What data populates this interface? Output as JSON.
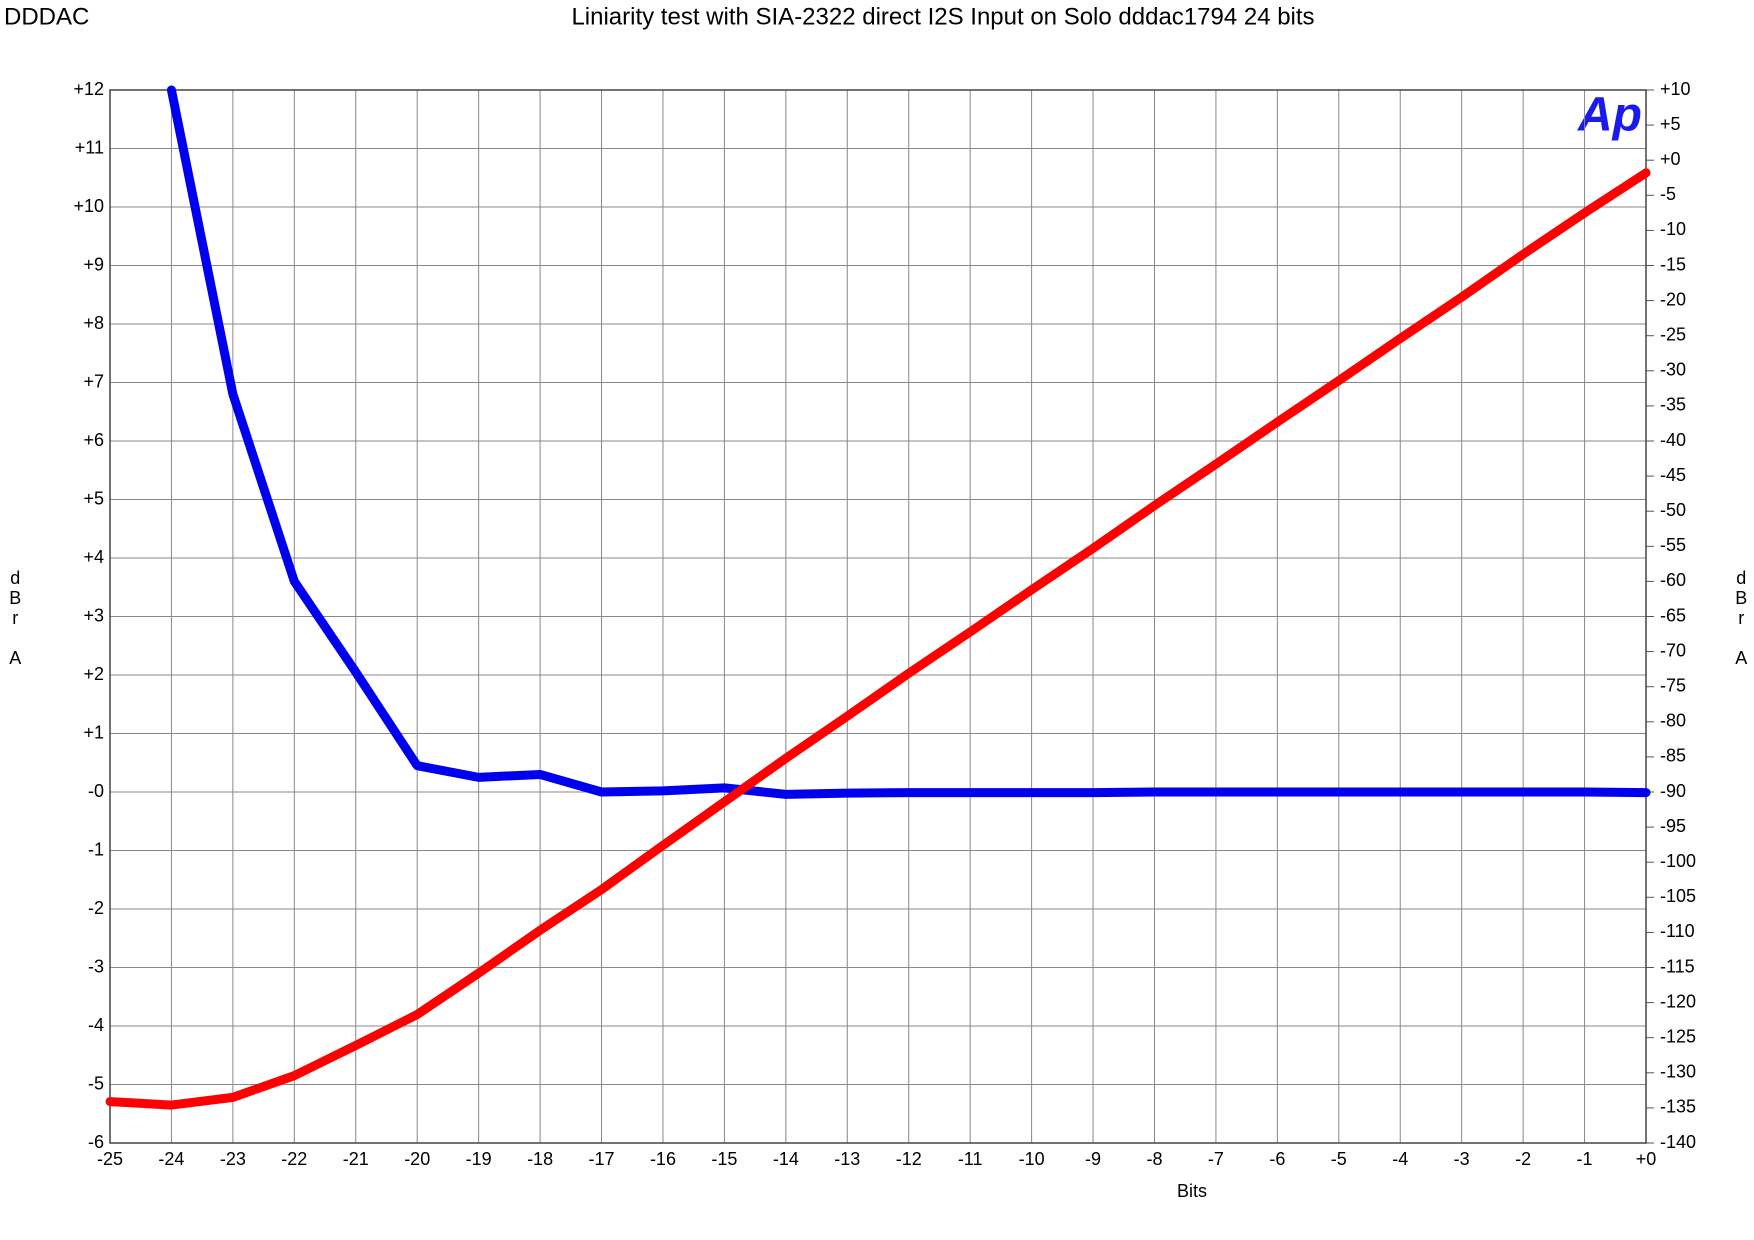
{
  "chart_data": {
    "type": "line",
    "brand": "DDDAC",
    "title": "Liniarity test with SIA-2322 direct I2S Input on Solo dddac1794 24 bits",
    "logo": "Ap",
    "x_label": "Bits",
    "y_label": "dBr A",
    "y2_label": "dBr A",
    "grid": true,
    "x": [
      -25,
      -24,
      -23,
      -22,
      -21,
      -20,
      -19,
      -18,
      -17,
      -16,
      -15,
      -14,
      -13,
      -12,
      -11,
      -10,
      -9,
      -8,
      -7,
      -6,
      -5,
      -4,
      -3,
      -2,
      -1,
      0
    ],
    "xlim": [
      -25,
      0
    ],
    "xticks": [
      -25,
      -24,
      -23,
      -22,
      -21,
      -20,
      -19,
      -18,
      -17,
      -16,
      -15,
      -14,
      -13,
      -12,
      -11,
      -10,
      -9,
      -8,
      -7,
      -6,
      -5,
      -4,
      -3,
      -2,
      -1,
      {
        "value": 0,
        "label": "+0"
      }
    ],
    "ylim": [
      -6,
      12
    ],
    "yticks": [
      {
        "value": 12,
        "label": "+12"
      },
      {
        "value": 11,
        "label": "+11"
      },
      {
        "value": 10,
        "label": "+10"
      },
      {
        "value": 9,
        "label": "+9"
      },
      {
        "value": 8,
        "label": "+8"
      },
      {
        "value": 7,
        "label": "+7"
      },
      {
        "value": 6,
        "label": "+6"
      },
      {
        "value": 5,
        "label": "+5"
      },
      {
        "value": 4,
        "label": "+4"
      },
      {
        "value": 3,
        "label": "+3"
      },
      {
        "value": 2,
        "label": "+2"
      },
      {
        "value": 1,
        "label": "+1"
      },
      {
        "value": 0,
        "label": "-0"
      },
      -1,
      -2,
      -3,
      -4,
      -5,
      -6
    ],
    "y2lim": [
      -140,
      10
    ],
    "y2ticks": [
      {
        "value": 10,
        "label": "+10"
      },
      {
        "value": 5,
        "label": "+5"
      },
      {
        "value": 0,
        "label": "+0"
      },
      -5,
      -10,
      -15,
      -20,
      -25,
      -30,
      -35,
      -40,
      -45,
      -50,
      -55,
      -60,
      -65,
      -70,
      -75,
      -80,
      -85,
      -90,
      -95,
      -100,
      -105,
      -110,
      -115,
      -120,
      -125,
      -130,
      -135,
      -140
    ],
    "series": [
      {
        "color": "#0000ee",
        "axis": "y",
        "values": [
          null,
          12,
          6.8,
          3.6,
          2.05,
          0.45,
          0.25,
          0.3,
          0.0,
          0.02,
          0.07,
          -0.04,
          -0.02,
          -0.01,
          -0.01,
          -0.01,
          -0.01,
          0,
          0,
          0,
          0,
          0,
          0,
          0,
          0,
          -0.01
        ]
      },
      {
        "color": "#ff0000",
        "axis": "y2",
        "values": [
          -134.1,
          -134.6,
          -133.5,
          -130.4,
          -126.1,
          -121.7,
          -115.8,
          -109.7,
          -103.9,
          -97.6,
          -91.4,
          -85.2,
          -79.2,
          -73.1,
          -67.2,
          -61.2,
          -55.3,
          -49.2,
          -43.3,
          -37.3,
          -31.4,
          -25.4,
          -19.5,
          -13.4,
          -7.5,
          -1.8
        ]
      }
    ]
  }
}
